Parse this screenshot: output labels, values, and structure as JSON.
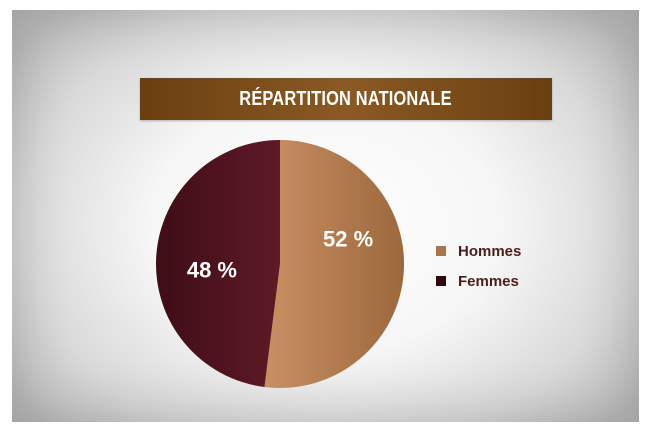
{
  "chart_data": {
    "type": "pie",
    "title": "RÉPARTITION NATIONALE",
    "categories": [
      "Hommes",
      "Femmes"
    ],
    "values": [
      52,
      48
    ],
    "labels": [
      "52 %",
      "48 %"
    ],
    "colors": [
      "#b07a4c",
      "#5a1a24"
    ],
    "legend_position": "right"
  }
}
